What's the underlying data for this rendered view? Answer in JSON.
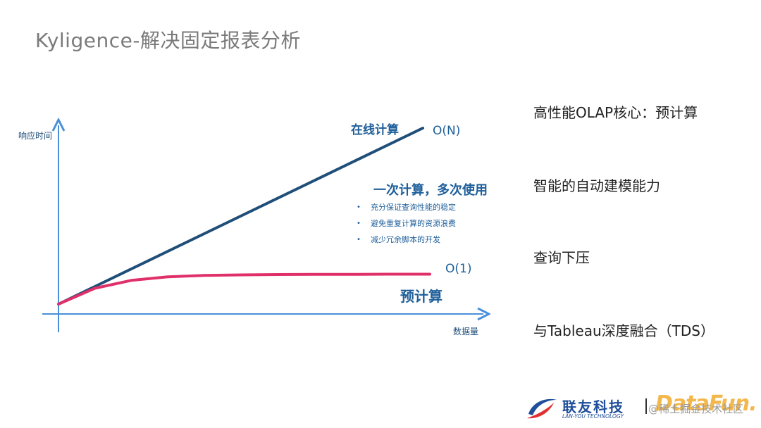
{
  "slide": {
    "title": "Kyligence-解决固定报表分析"
  },
  "chart_data": {
    "type": "line",
    "xlabel": "数据量",
    "ylabel": "响应时间",
    "series": [
      {
        "name": "在线计算",
        "values": [
          0,
          1,
          2,
          3,
          4,
          5,
          6,
          7,
          8,
          9,
          10
        ]
      },
      {
        "name": "预计算",
        "values": [
          0,
          0.9,
          1.35,
          1.55,
          1.63,
          1.66,
          1.68,
          1.69,
          1.69,
          1.7,
          1.7
        ]
      }
    ],
    "x": [
      0,
      1,
      2,
      3,
      4,
      5,
      6,
      7,
      8,
      9,
      10
    ],
    "annotations": {
      "online_complexity": "O(N)",
      "precompute_complexity": "O(1)",
      "online_label": "在线计算",
      "precompute_label": "预计算",
      "callout_title": "一次计算，多次使用",
      "callout_bullets": [
        "充分保证查询性能的稳定",
        "避免重复计算的资源浪费",
        "减少冗余脚本的开发"
      ]
    },
    "colors": {
      "online": "#1f4e79",
      "precompute": "#e0306a",
      "axis": "#4a90d9"
    },
    "grid": false
  },
  "right_panel": {
    "items": [
      "高性能OLAP核心：预计算",
      "智能的自动建模能力",
      "查询下压",
      "与Tableau深度融合（TDS）"
    ]
  },
  "footer": {
    "logo_cn": "联友科技",
    "logo_en": "LAN-YOU TECHNOLOGY",
    "watermark": "@稀土掘金技术社区",
    "brand": "DataFun."
  }
}
